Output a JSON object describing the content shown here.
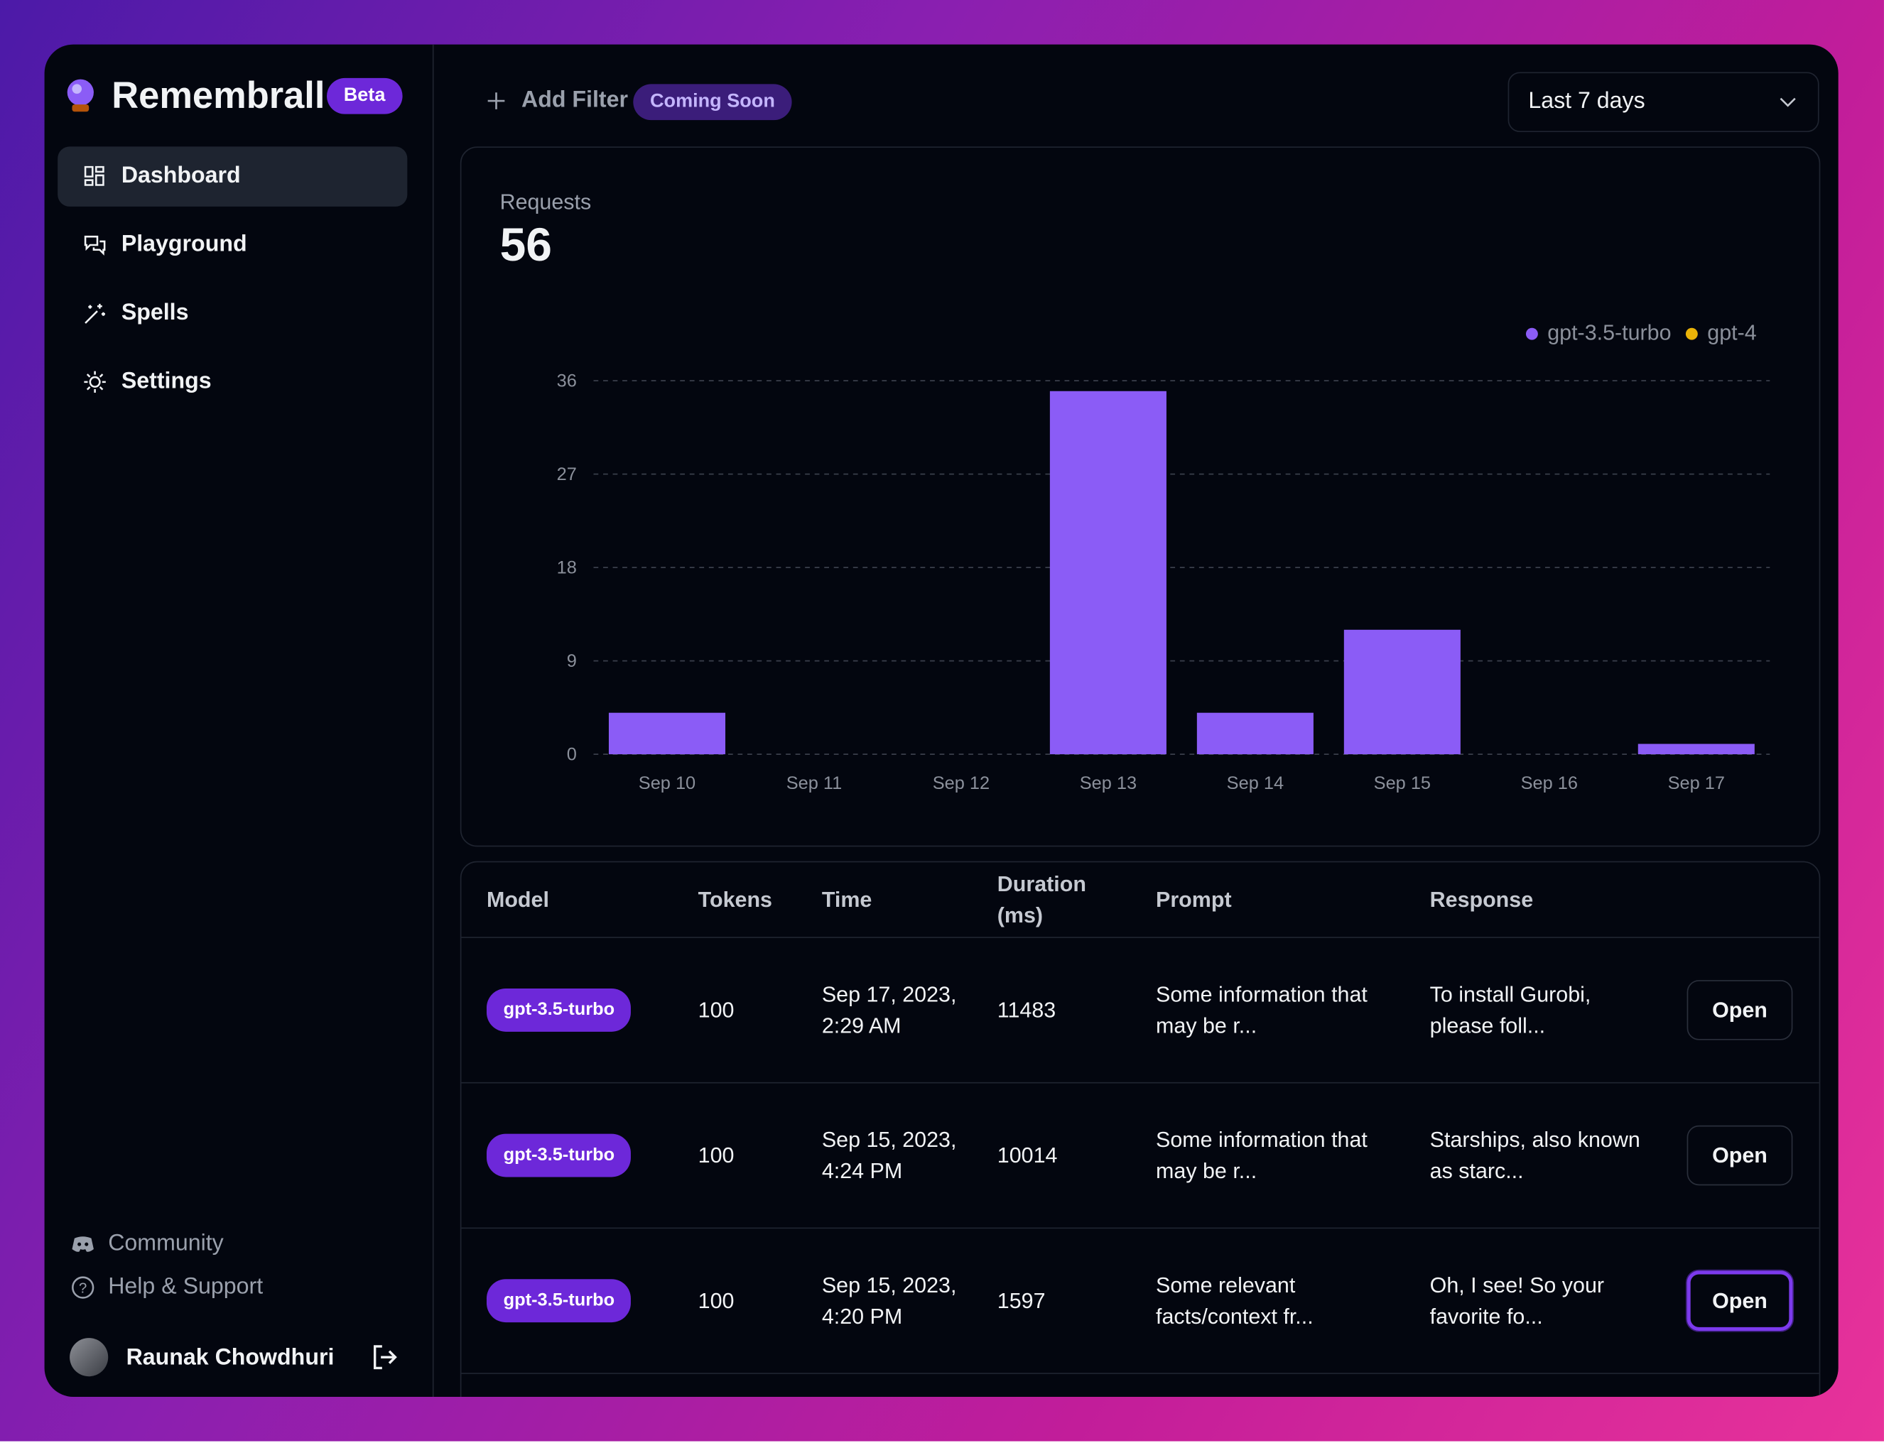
{
  "sidebar": {
    "brand": "Remembrall",
    "badge": "Beta",
    "nav": [
      "Dashboard",
      "Playground",
      "Spells",
      "Settings"
    ],
    "footer_links": [
      "Community",
      "Help & Support"
    ],
    "user": "Raunak Chowdhuri"
  },
  "header": {
    "add_filter": "Add Filter",
    "badge": "Coming Soon",
    "range": "Last 7 days"
  },
  "chart": {
    "type": "bar",
    "title": "Requests",
    "total": 56,
    "categories": [
      "Sep 10",
      "Sep 11",
      "Sep 12",
      "Sep 13",
      "Sep 14",
      "Sep 15",
      "Sep 16",
      "Sep 17"
    ],
    "series": [
      {
        "name": "gpt-3.5-turbo",
        "color": "#8b5cf6",
        "values": [
          4,
          0,
          0,
          35,
          4,
          12,
          0,
          1
        ]
      },
      {
        "name": "gpt-4",
        "color": "#eab308",
        "values": [
          0,
          0,
          0,
          0,
          0,
          0,
          0,
          0
        ]
      }
    ],
    "stacked": true,
    "ylim": [
      0,
      36
    ],
    "yticks": [
      0,
      9,
      18,
      27,
      36
    ],
    "grid": true,
    "legend": "top-right"
  },
  "table": {
    "columns": [
      "Model",
      "Tokens",
      "Time",
      "Duration (ms)",
      "Prompt",
      "Response"
    ],
    "rows": [
      [
        "gpt-3.5-turbo",
        "100",
        "Sep 17, 2023, 2:29 AM",
        "11483",
        "Some information that may be r...",
        "To install Gurobi, please foll...",
        "Open"
      ],
      [
        "gpt-3.5-turbo",
        "100",
        "Sep 15, 2023, 4:24 PM",
        "10014",
        "Some information that may be r...",
        "Starships, also known as starc...",
        "Open"
      ],
      [
        "gpt-3.5-turbo",
        "100",
        "Sep 15, 2023, 4:20 PM",
        "1597",
        "Some relevant facts/context fr...",
        "Oh, I see! So your favorite fo...",
        "Open"
      ]
    ]
  }
}
